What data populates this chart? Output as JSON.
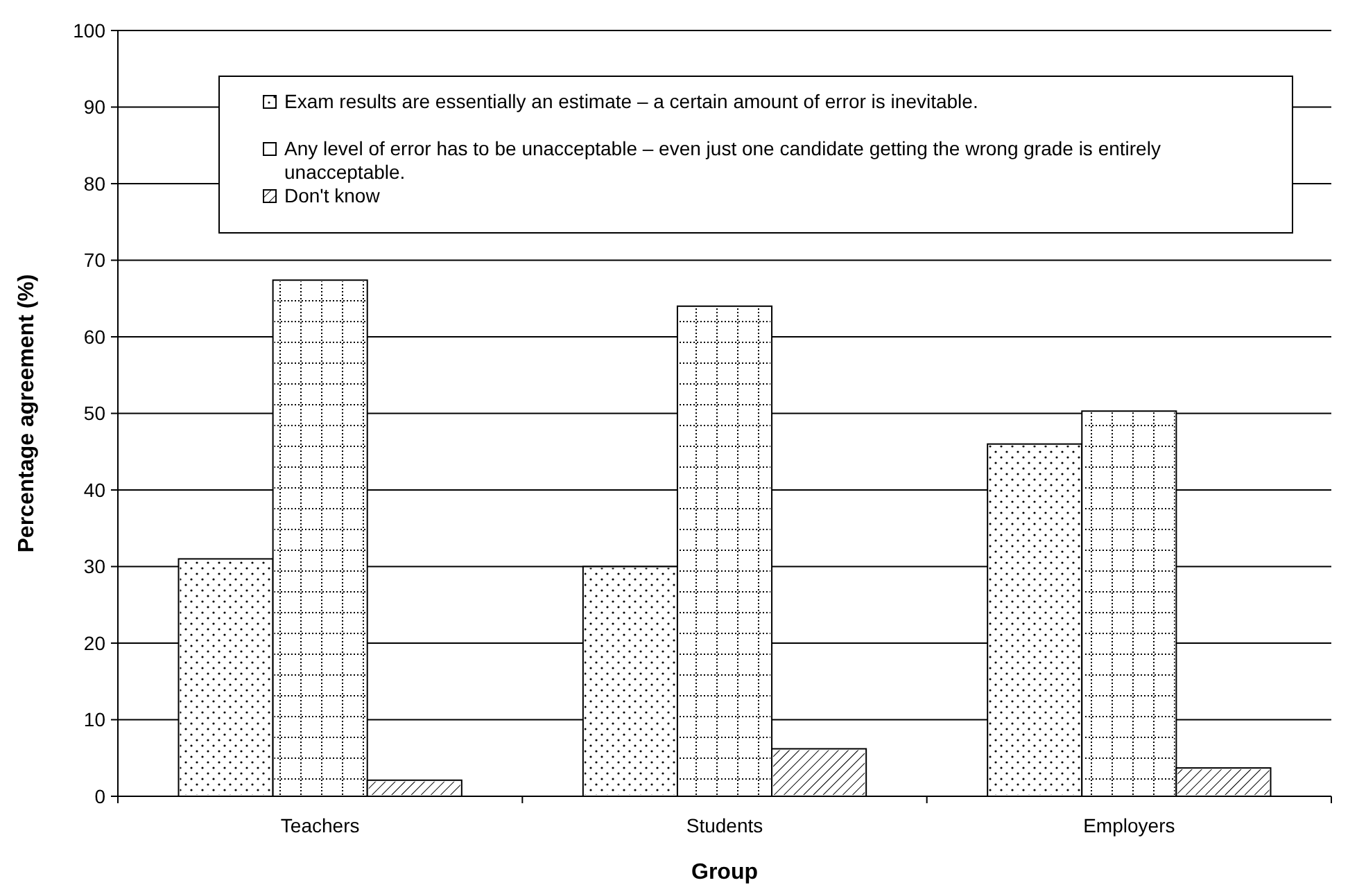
{
  "chart_data": {
    "type": "bar",
    "xlabel": "Group",
    "ylabel": "Percentage agreement (%)",
    "categories": [
      "Teachers",
      "Students",
      "Employers"
    ],
    "series": [
      {
        "name": "Exam results are essentially an estimate – a certain amount of error is inevitable.",
        "color": "#ffffff",
        "values": [
          31,
          30,
          46
        ]
      },
      {
        "name": "Any level of error has to be unacceptable – even just one candidate getting the wrong grade is entirely unacceptable.",
        "color": "#ffffff",
        "values": [
          67.4,
          64,
          50.3
        ]
      },
      {
        "name": "Don't know",
        "color": "#ffffff",
        "values": [
          2.1,
          6.2,
          3.7
        ]
      }
    ],
    "ylim": [
      0,
      100
    ],
    "yticks": [
      0,
      10,
      20,
      30,
      40,
      50,
      60,
      70,
      80,
      90,
      100
    ],
    "grid": "y",
    "legend": "top"
  }
}
